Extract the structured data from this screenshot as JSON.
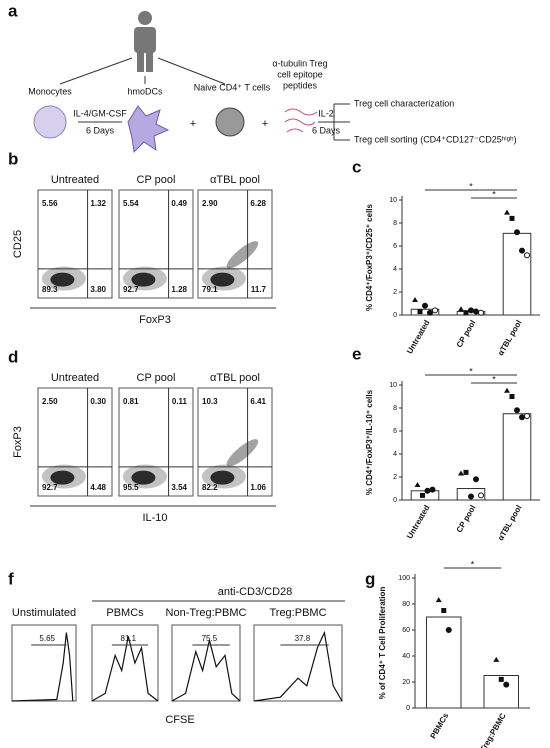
{
  "panel_a": {
    "letter": "a",
    "monocytes": "Monocytes",
    "hmodcs": "hmoDCs",
    "tcells": "Naive CD4⁺ T cells",
    "peptides": [
      "α-tubulin Treg",
      "cell epitope",
      "peptides"
    ],
    "cytokines": "IL-4/GM-CSF",
    "days1": "6 Days",
    "il2": "IL-2",
    "days2": "6 Days",
    "plus": "+",
    "out1": "Treg cell characterization",
    "out2": "Treg cell sorting (CD4⁺CD127⁻CD25ʰⁱᵍʰ)"
  },
  "panel_b": {
    "letter": "b",
    "ylabel": "CD25",
    "xlabel": "FoxP3",
    "plots": [
      {
        "title": "Untreated",
        "quadrants": [
          "5.56",
          "1.32",
          "89.3",
          "3.80"
        ]
      },
      {
        "title": "CP pool",
        "quadrants": [
          "5.54",
          "0.49",
          "92.7",
          "1.28"
        ]
      },
      {
        "title": "αTBL pool",
        "quadrants": [
          "2.90",
          "6.28",
          "79.1",
          "11.7"
        ]
      }
    ]
  },
  "panel_d": {
    "letter": "d",
    "ylabel": "FoxP3",
    "xlabel": "IL-10",
    "plots": [
      {
        "title": "Untreated",
        "quadrants": [
          "2.50",
          "0.30",
          "92.7",
          "4.48"
        ]
      },
      {
        "title": "CP pool",
        "quadrants": [
          "0.81",
          "0.11",
          "95.5",
          "3.54"
        ]
      },
      {
        "title": "αTBL pool",
        "quadrants": [
          "10.3",
          "6.41",
          "82.2",
          "1.06"
        ]
      }
    ]
  },
  "panel_f": {
    "letter": "f",
    "stimulus": "anti-CD3/CD28",
    "xlabel": "CFSE",
    "plots": [
      {
        "title": "Unstimulated",
        "gate": "5.65"
      },
      {
        "title": "PBMCs",
        "gate": "81.1"
      },
      {
        "title": "Non-Treg:PBMC",
        "gate": "75.5"
      },
      {
        "title": "Treg:PBMC",
        "gate": "37.8"
      }
    ]
  },
  "chart_data": [
    {
      "type": "bar",
      "letter": "c",
      "ylabel": "% CD4⁺/FoxP3⁺/CD25⁺ cells",
      "categories": [
        "Untreated",
        "CP pool",
        "αTBL pool"
      ],
      "values": [
        0.5,
        0.3,
        7.1
      ],
      "points": [
        [
          1.3,
          0.3,
          0.8,
          0.2,
          0.4
        ],
        [
          0.5,
          0.2,
          0.4,
          0.3,
          0.2
        ],
        [
          8.9,
          8.4,
          7.2,
          5.6,
          5.2
        ]
      ],
      "ylim": [
        0,
        10
      ],
      "yticks": [
        0,
        2,
        4,
        6,
        8,
        10
      ],
      "annotations": [
        "*",
        "*"
      ]
    },
    {
      "type": "bar",
      "letter": "e",
      "ylabel": "% CD4⁺/FoxP3⁺/IL-10⁺ cells",
      "categories": [
        "Untreated",
        "CP pool",
        "αTBL pool"
      ],
      "values": [
        0.8,
        1.0,
        7.5
      ],
      "points": [
        [
          1.3,
          0.4,
          0.8,
          0.9
        ],
        [
          2.3,
          2.4,
          0.3,
          1.8,
          0.4
        ],
        [
          9.5,
          9.0,
          7.8,
          7.2,
          7.3
        ]
      ],
      "ylim": [
        0,
        10
      ],
      "yticks": [
        0,
        2,
        4,
        6,
        8,
        10
      ],
      "annotations": [
        "*",
        "*"
      ]
    },
    {
      "type": "bar",
      "letter": "g",
      "ylabel": "% of CD4⁺ T Cell Proliferation",
      "categories": [
        "PBMCs",
        "Treg:PBMC"
      ],
      "values": [
        70,
        25
      ],
      "points": [
        [
          83,
          75,
          60
        ],
        [
          37,
          22,
          18
        ]
      ],
      "ylim": [
        0,
        100
      ],
      "yticks": [
        0,
        20,
        40,
        60,
        80,
        100
      ],
      "annotations": [
        "*"
      ]
    }
  ]
}
